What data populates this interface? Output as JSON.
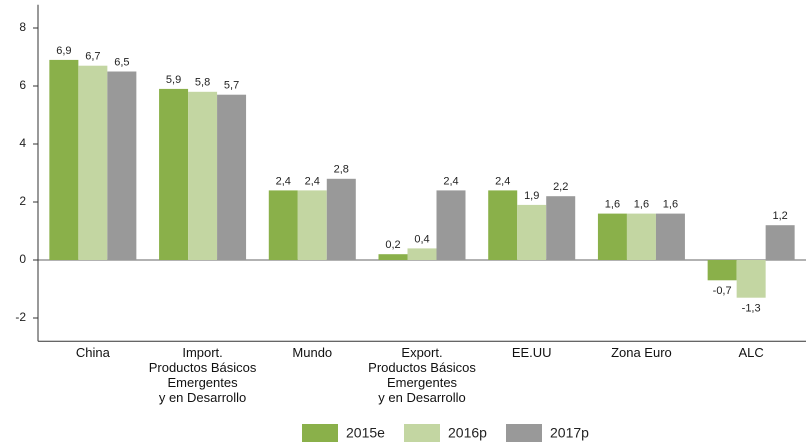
{
  "chart_data": {
    "type": "bar",
    "categories": [
      "China",
      "Import.\nProductos Básicos\nEmergentes\ny en Desarrollo",
      "Mundo",
      "Export.\nProductos Básicos\nEmergentes\ny en Desarrollo",
      "EE.UU",
      "Zona Euro",
      "ALC"
    ],
    "series": [
      {
        "name": "2015e",
        "color": "#8ab04a",
        "values": [
          6.9,
          5.9,
          2.4,
          0.2,
          2.4,
          1.6,
          -0.7
        ],
        "value_labels": [
          "6,9",
          "5,9",
          "2,4",
          "0,2",
          "2,4",
          "1,6",
          "-0,7"
        ]
      },
      {
        "name": "2016p",
        "color": "#c3d6a2",
        "values": [
          6.7,
          5.8,
          2.4,
          0.4,
          1.9,
          1.6,
          -1.3
        ],
        "value_labels": [
          "6,7",
          "5,8",
          "2,4",
          "0,4",
          "1,9",
          "1,6",
          "-1,3"
        ]
      },
      {
        "name": "2017p",
        "color": "#999999",
        "values": [
          6.5,
          5.7,
          2.8,
          2.4,
          2.2,
          1.6,
          1.2
        ],
        "value_labels": [
          "6,5",
          "5,7",
          "2,8",
          "2,4",
          "2,2",
          "1,6",
          "1,2"
        ]
      }
    ],
    "ylim": [
      -2.8,
      8.8
    ],
    "yticks": [
      -2,
      0,
      2,
      4,
      6,
      8
    ],
    "grid": false,
    "legend": "bottom"
  }
}
